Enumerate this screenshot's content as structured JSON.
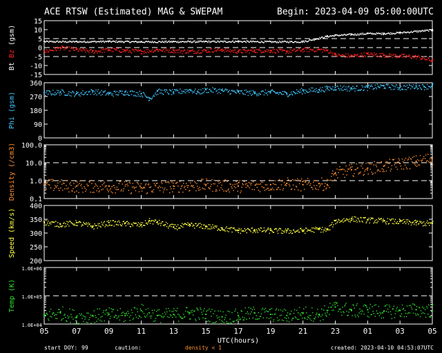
{
  "header": {
    "title": "ACE RTSW (Estimated) MAG & SWEPAM",
    "begin": "Begin: 2023-04-09 05:00:00UTC"
  },
  "footer": {
    "start_doy_label": "start DOY:",
    "start_doy_value": "99",
    "caution_label": "caution:",
    "caution_text": "density < 1",
    "created": "created: 2023-04-10 04:53:07UTC"
  },
  "colors": {
    "background": "#000000",
    "bt": "#ffffff",
    "bz": "#ff2020",
    "phi": "#40c8ff",
    "density": "#ff9030",
    "speed": "#ffff40",
    "temp": "#30e030",
    "frame": "#ffffff"
  },
  "chart_data": [
    {
      "type": "line",
      "title": "",
      "ylabel_parts": [
        "Bt",
        "Bz",
        "(gsm)"
      ],
      "ylim": [
        -15,
        15
      ],
      "yticks": [
        "15",
        "10",
        "5",
        "0",
        "-5",
        "-10",
        "-15"
      ],
      "ytick_values": [
        15,
        10,
        5,
        0,
        -5,
        -10,
        -15
      ],
      "reference_lines": [
        5,
        0,
        -5
      ],
      "series": [
        {
          "name": "Bt",
          "x": [
            0,
            2,
            4,
            6,
            8,
            10,
            12,
            14,
            16,
            17.5,
            18,
            19,
            20,
            21,
            22,
            24
          ],
          "values": [
            3.5,
            3.5,
            3.6,
            3.4,
            3.5,
            3.5,
            3.6,
            3.4,
            3.5,
            6.5,
            7,
            7.5,
            8,
            8,
            8.5,
            10
          ]
        },
        {
          "name": "Bz",
          "x": [
            0,
            1,
            2,
            3,
            4,
            5,
            6,
            7,
            8,
            9,
            10,
            11,
            12,
            13,
            14,
            15,
            16,
            17,
            17.5,
            18,
            19,
            20,
            21,
            22,
            23,
            24
          ],
          "values": [
            -2,
            0,
            -1,
            -2,
            -1,
            -1.5,
            -2,
            -1,
            -1.5,
            -2,
            -1.5,
            -1,
            -2,
            -1.5,
            -1.5,
            -2,
            -1,
            -1,
            -1.5,
            -4,
            -4.5,
            -3.5,
            -4,
            -4.5,
            -5,
            -7
          ]
        }
      ]
    },
    {
      "type": "scatter",
      "title": "",
      "ylabel": "Phi (gsm)",
      "ylim": [
        0,
        360
      ],
      "yticks": [
        "360",
        "270",
        "180",
        "90",
        "0"
      ],
      "ytick_values": [
        360,
        270,
        180,
        90,
        0
      ],
      "series": [
        {
          "name": "Phi",
          "x": [
            0,
            1,
            2,
            3,
            4,
            5,
            6,
            6.5,
            7,
            8,
            9,
            9.5,
            10,
            11,
            12,
            13,
            14,
            15,
            16,
            17,
            17.5,
            18,
            19,
            20,
            21,
            22,
            23,
            23.5,
            24
          ],
          "values": [
            295,
            300,
            290,
            305,
            290,
            300,
            290,
            260,
            305,
            300,
            315,
            300,
            315,
            310,
            300,
            295,
            300,
            290,
            310,
            315,
            325,
            330,
            325,
            330,
            340,
            330,
            340,
            335,
            345
          ]
        }
      ]
    },
    {
      "type": "scatter",
      "title": "",
      "ylabel": "Density (/cm3)",
      "yscale": "log",
      "ylim": [
        0.1,
        100
      ],
      "yticks": [
        "100.0",
        "10.0",
        "1.0",
        "0.1"
      ],
      "ytick_values": [
        100,
        10,
        1,
        0.1
      ],
      "reference_lines": [
        10,
        1
      ],
      "series": [
        {
          "name": "Density",
          "x": [
            0,
            2,
            4,
            6,
            8,
            10,
            12,
            14,
            15,
            16,
            17,
            17.5,
            18,
            19,
            20,
            21,
            22,
            23,
            24
          ],
          "values": [
            0.6,
            0.5,
            0.5,
            0.4,
            0.5,
            0.6,
            0.5,
            0.6,
            0.7,
            0.6,
            0.7,
            0.6,
            2.5,
            4,
            5,
            6.5,
            9,
            12,
            18
          ]
        }
      ]
    },
    {
      "type": "scatter",
      "title": "",
      "ylabel": "Speed (km/s)",
      "ylim": [
        200,
        400
      ],
      "yticks": [
        "400",
        "350",
        "300",
        "250",
        "200"
      ],
      "ytick_values": [
        400,
        350,
        300,
        250,
        200
      ],
      "series": [
        {
          "name": "Speed",
          "x": [
            0,
            1,
            2,
            3,
            4,
            5,
            6,
            6.5,
            7,
            8,
            9,
            10,
            11,
            12,
            13,
            14,
            15,
            16,
            17,
            17.5,
            18,
            19,
            20,
            21,
            22,
            23,
            24
          ],
          "values": [
            340,
            332,
            338,
            325,
            338,
            335,
            330,
            345,
            340,
            322,
            330,
            325,
            318,
            310,
            312,
            310,
            308,
            310,
            315,
            312,
            345,
            352,
            348,
            345,
            342,
            338,
            335
          ]
        }
      ]
    },
    {
      "type": "scatter",
      "title": "",
      "ylabel": "Temp (K)",
      "yscale": "log",
      "ylim": [
        10000,
        1000000
      ],
      "yticks": [
        "1.0E+06",
        "1.0E+05",
        "1.0E+04"
      ],
      "ytick_values": [
        1000000,
        100000,
        10000
      ],
      "reference_lines": [
        100000
      ],
      "series": [
        {
          "name": "Temp",
          "x": [
            0,
            1,
            2,
            3,
            4,
            5,
            6,
            7,
            8,
            9,
            10,
            11,
            12,
            13,
            14,
            15,
            16,
            17,
            17.5,
            18,
            19,
            20,
            21,
            22,
            23,
            24
          ],
          "values": [
            20000,
            25000,
            18000,
            20000,
            22000,
            20000,
            30000,
            20000,
            22000,
            25000,
            22000,
            18000,
            20000,
            25000,
            22000,
            20000,
            25000,
            22000,
            30000,
            40000,
            30000,
            32000,
            28000,
            30000,
            32000,
            30000
          ]
        }
      ]
    }
  ],
  "xaxis": {
    "label": "UTC(hours)",
    "ticks": [
      "05",
      "07",
      "09",
      "11",
      "13",
      "15",
      "17",
      "19",
      "21",
      "23",
      "01",
      "03",
      "05"
    ],
    "tick_hours": [
      0,
      2,
      4,
      6,
      8,
      10,
      12,
      14,
      16,
      18,
      20,
      22,
      24
    ],
    "range_hours": [
      0,
      24
    ]
  }
}
